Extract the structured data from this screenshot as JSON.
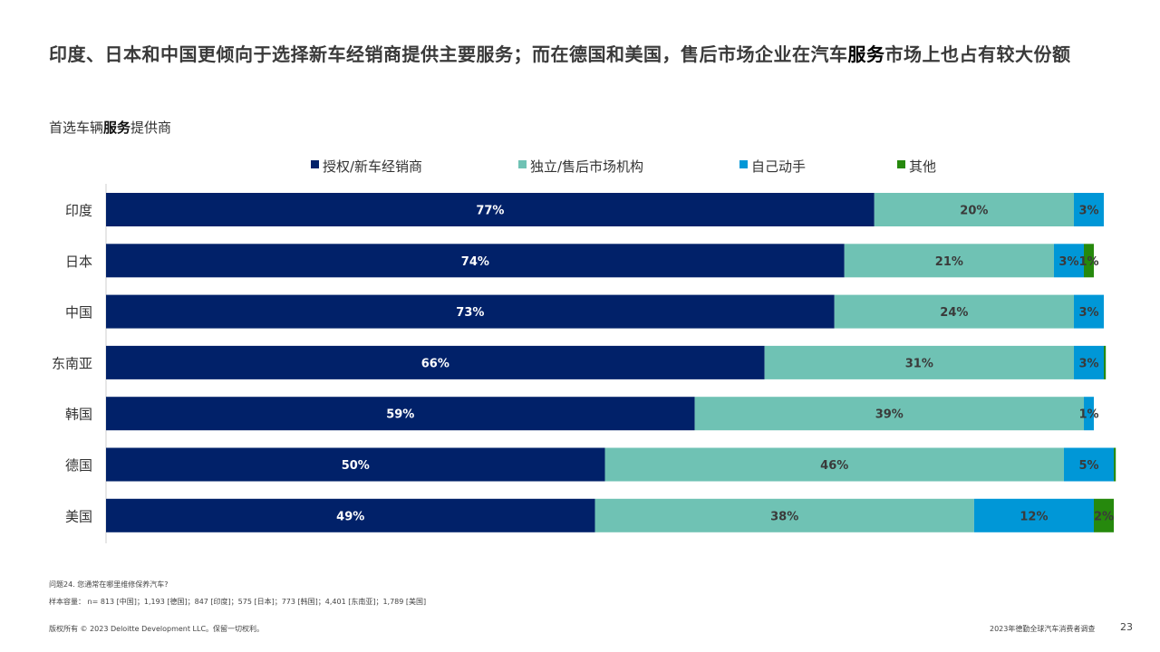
{
  "title": {
    "before": "印度、日本和中国更倾向于选择新车经销商提供主要服务；而在德国和美国，售后市场企业在汽车",
    "highlight": "服务",
    "after": "市场上也占有较大份额"
  },
  "subtitle": {
    "before": "首选车辆",
    "highlight": "服务",
    "after": "提供商"
  },
  "chart_data": {
    "type": "bar",
    "orientation": "horizontal",
    "stacked": true,
    "categories": [
      "印度",
      "日本",
      "中国",
      "东南亚",
      "韩国",
      "德国",
      "美国"
    ],
    "series": [
      {
        "name": "授权/新车经销商",
        "color": "#012169",
        "label_color": "#ffffff",
        "values": [
          77,
          74,
          73,
          66,
          59,
          50,
          49
        ],
        "labels": [
          "77%",
          "74%",
          "73%",
          "66%",
          "59%",
          "50%",
          "49%"
        ]
      },
      {
        "name": "独立/售后市场机构",
        "color": "#6FC2B4",
        "label_color": "#3a3a3a",
        "values": [
          20,
          21,
          24,
          31,
          39,
          46,
          38
        ],
        "labels": [
          "20%",
          "21%",
          "24%",
          "31%",
          "39%",
          "46%",
          "38%"
        ]
      },
      {
        "name": "自己动手",
        "color": "#0097D7",
        "label_color": "#3a3a3a",
        "values": [
          3,
          3,
          3,
          3,
          1,
          5,
          12
        ],
        "labels": [
          "3%",
          "3%",
          "3%",
          "3%",
          "1%",
          "5%",
          "12%"
        ]
      },
      {
        "name": "其他",
        "color": "#26890D",
        "label_color": "#3a3a3a",
        "values": [
          0,
          1,
          0,
          0.2,
          0,
          0.2,
          2
        ],
        "labels": [
          "",
          "1%",
          "",
          "",
          "",
          "",
          "2%"
        ]
      }
    ],
    "xlim": [
      0,
      100
    ],
    "legend_position": "top"
  },
  "footnotes": {
    "question": "问题24. 您通常在哪里维修保养汽车?",
    "sample": "样本容量： n= 813 [中国]；1,193 [德国]；847 [印度]；575 [日本]；773 [韩国]；4,401 [东南亚]；1,789 [美国]"
  },
  "footer": {
    "copyright": "版权所有 © 2023 Deloitte Development LLC。保留一切权利。",
    "survey": "2023年德勤全球汽车消费者调查",
    "page": "23"
  }
}
